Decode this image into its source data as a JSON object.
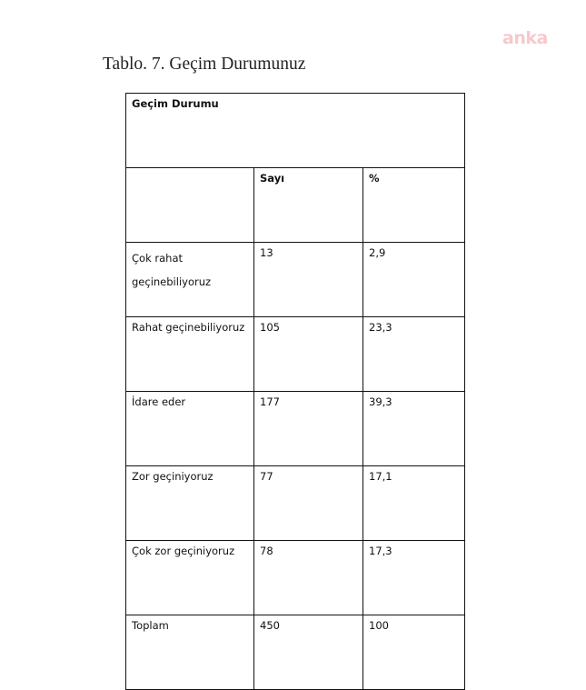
{
  "watermark": "anka",
  "caption": "Tablo. 7. Geçim Durumunuz",
  "table": {
    "title": "Geçim Durumu",
    "headers": [
      "",
      "Sayı",
      "%"
    ],
    "rows": [
      {
        "label": "Çok rahat geçinebiliyoruz",
        "count": "13",
        "percent": "2,9"
      },
      {
        "label": "Rahat geçinebiliyoruz",
        "count": "105",
        "percent": "23,3"
      },
      {
        "label": "İdare eder",
        "count": "177",
        "percent": "39,3"
      },
      {
        "label": "Zor geçiniyoruz",
        "count": "77",
        "percent": "17,1"
      },
      {
        "label": "Çok zor geçiniyoruz",
        "count": "78",
        "percent": "17,3"
      },
      {
        "label": "Toplam",
        "count": "450",
        "percent": "100"
      }
    ]
  }
}
